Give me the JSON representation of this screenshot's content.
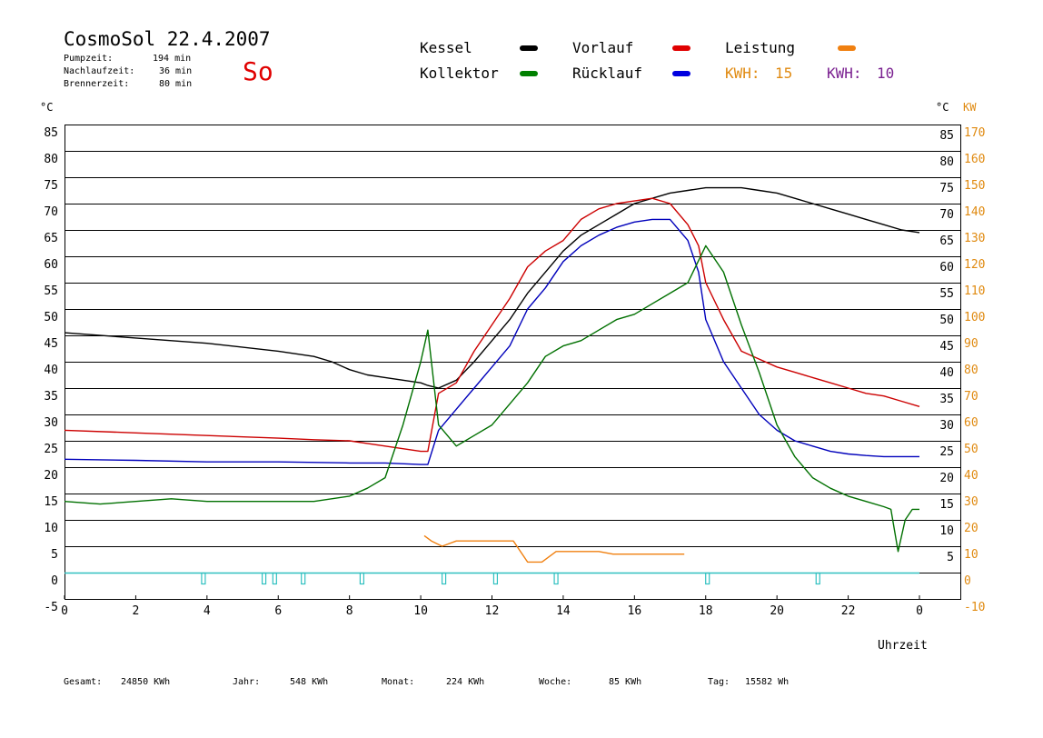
{
  "header": {
    "title": "CosmoSol 22.4.2007",
    "day": "So",
    "stats": [
      {
        "label": "Pumpzeit:",
        "value": "194 min"
      },
      {
        "label": "Nachlaufzeit:",
        "value": "36 min"
      },
      {
        "label": "Brennerzeit:",
        "value": "80 min"
      }
    ]
  },
  "legend": {
    "items": [
      {
        "label": "Kessel",
        "color": "#000000"
      },
      {
        "label": "Vorlauf",
        "color": "#e00000"
      },
      {
        "label": "Leistung",
        "color": "#f08010"
      },
      {
        "label": "Kollektor",
        "color": "#008000"
      },
      {
        "label": "Rücklauf",
        "color": "#0000e0"
      }
    ],
    "kwh": [
      {
        "label": "KWH:",
        "value": "15",
        "color": "#e08a10"
      },
      {
        "label": "KWH:",
        "value": "10",
        "color": "#7a2090"
      }
    ]
  },
  "axes": {
    "left_unit": "°C",
    "right_unit_c": "°C",
    "right_unit_kw": "KW",
    "x_label": "Uhrzeit"
  },
  "footer": [
    {
      "label": "Gesamt:",
      "value": "24850 KWh"
    },
    {
      "label": "Jahr:",
      "value": "548 KWh"
    },
    {
      "label": "Monat:",
      "value": "224 KWh"
    },
    {
      "label": "Woche:",
      "value": "85 KWh"
    },
    {
      "label": "Tag:",
      "value": "15582 Wh"
    }
  ],
  "colors": {
    "kessel": "#000000",
    "vorlauf": "#cc0000",
    "ruecklauf": "#0000bb",
    "kollektor": "#007000",
    "leistung": "#f08010",
    "leistung2": "#7a2090",
    "pump": "#30c0c0",
    "kw_axis": "#e08a10",
    "day": "#e00000",
    "grid": "#000000"
  },
  "chart_data": {
    "type": "line",
    "xlabel": "Uhrzeit",
    "ylabel": "°C",
    "y2label": "KW",
    "xlim": [
      0,
      24
    ],
    "ylim": [
      -5,
      85
    ],
    "y2lim": [
      -10,
      170
    ],
    "x_ticks": [
      "0",
      "2",
      "4",
      "6",
      "8",
      "10",
      "12",
      "14",
      "16",
      "18",
      "20",
      "22",
      "0"
    ],
    "x_tick_values": [
      0,
      2,
      4,
      6,
      8,
      10,
      12,
      14,
      16,
      18,
      20,
      22,
      24
    ],
    "y_ticks_left": [
      85,
      80,
      75,
      70,
      65,
      60,
      55,
      50,
      45,
      40,
      35,
      30,
      25,
      20,
      15,
      10,
      5,
      0,
      -5
    ],
    "y_ticks_right_c": [
      85,
      80,
      75,
      70,
      65,
      60,
      55,
      50,
      45,
      40,
      35,
      30,
      25,
      20,
      15,
      10,
      5
    ],
    "y_ticks_right_kw": [
      170,
      160,
      150,
      140,
      130,
      120,
      110,
      100,
      90,
      80,
      70,
      60,
      50,
      40,
      30,
      20,
      10,
      0,
      -10
    ],
    "grid": true,
    "series": [
      {
        "name": "Kessel",
        "x": [
          0,
          2,
          4,
          6,
          7,
          7.5,
          8,
          8.5,
          9,
          9.5,
          10,
          10.2,
          10.5,
          11,
          11.5,
          12,
          12.5,
          13,
          13.5,
          14,
          14.5,
          15,
          15.5,
          16,
          16.5,
          17,
          17.5,
          18,
          18.5,
          19,
          19.5,
          20,
          20.5,
          21,
          21.5,
          22,
          22.5,
          23,
          23.5,
          24
        ],
        "y": [
          45.5,
          44.5,
          43.5,
          42,
          41,
          40,
          38.5,
          37.5,
          37,
          36.5,
          36,
          35.5,
          35,
          36.5,
          40,
          44,
          48,
          53,
          57,
          61,
          64,
          66,
          68,
          70,
          71,
          72,
          72.5,
          73,
          73,
          73,
          72.5,
          72,
          71,
          70,
          69,
          68,
          67,
          66,
          65,
          64.5
        ]
      },
      {
        "name": "Vorlauf",
        "x": [
          0,
          2,
          4,
          6,
          7,
          8,
          8.5,
          9,
          9.5,
          10,
          10.2,
          10.5,
          11,
          11.5,
          12,
          12.5,
          13,
          13.5,
          14,
          14.5,
          15,
          15.5,
          16,
          16.5,
          17,
          17.5,
          17.8,
          18,
          18.5,
          19,
          19.5,
          20,
          20.5,
          21,
          21.5,
          22,
          22.5,
          23,
          23.5,
          24
        ],
        "y": [
          27,
          26.5,
          26,
          25.5,
          25.2,
          25,
          24.5,
          24,
          23.5,
          23,
          23,
          34,
          36,
          42,
          47,
          52,
          58,
          61,
          63,
          67,
          69,
          70,
          70.5,
          71,
          70,
          66,
          62,
          55,
          48,
          42,
          40.5,
          39,
          38,
          37,
          36,
          35,
          34,
          33.5,
          32.5,
          31.5
        ]
      },
      {
        "name": "Rücklauf",
        "x": [
          0,
          2,
          4,
          6,
          8,
          9,
          10,
          10.2,
          10.5,
          11,
          11.5,
          12,
          12.5,
          13,
          13.5,
          14,
          14.5,
          15,
          15.5,
          16,
          16.5,
          17,
          17.5,
          17.8,
          18,
          18.5,
          19,
          19.5,
          20,
          20.5,
          21,
          21.5,
          22,
          22.5,
          23,
          23.5,
          24
        ],
        "y": [
          21.5,
          21.3,
          21,
          21,
          20.8,
          20.8,
          20.5,
          20.5,
          27,
          31,
          35,
          39,
          43,
          50,
          54,
          59,
          62,
          64,
          65.5,
          66.5,
          67,
          67,
          63,
          57,
          48,
          40,
          35,
          30,
          27,
          25,
          24,
          23,
          22.5,
          22.2,
          22,
          22,
          22
        ]
      },
      {
        "name": "Kollektor",
        "x": [
          0,
          1,
          2,
          3,
          4,
          5,
          6,
          7,
          8,
          8.5,
          9,
          9.5,
          10,
          10.2,
          10.5,
          11,
          11.5,
          12,
          12.5,
          13,
          13.5,
          14,
          14.5,
          15,
          15.5,
          16,
          16.5,
          17,
          17.5,
          18,
          18.5,
          19,
          19.5,
          20,
          20.5,
          21,
          21.5,
          22,
          22.5,
          23,
          23.2,
          23.4,
          23.6,
          23.8,
          24
        ],
        "y": [
          13.5,
          13,
          13.5,
          14,
          13.5,
          13.5,
          13.5,
          13.5,
          14.5,
          16,
          18,
          28,
          40,
          46,
          28,
          24,
          26,
          28,
          32,
          36,
          41,
          43,
          44,
          46,
          48,
          49,
          51,
          53,
          55,
          62,
          57,
          47,
          38,
          28,
          22,
          18,
          16,
          14.5,
          13.5,
          12.5,
          12,
          4,
          10,
          12,
          12
        ]
      },
      {
        "name": "Leistung",
        "x": [
          10.1,
          10.3,
          10.6,
          11,
          11.4,
          11.8,
          12.2,
          12.6,
          13,
          13.4,
          13.8,
          14.2,
          14.6,
          15,
          15.4,
          15.8,
          16.2,
          16.6,
          17,
          17.4
        ],
        "y": [
          7,
          6,
          5,
          6,
          6,
          6,
          6,
          6,
          2,
          2,
          4,
          4,
          4,
          4,
          3.5,
          3.5,
          3.5,
          3.5,
          3.5,
          3.5
        ]
      }
    ],
    "pump_markers_x": [
      3.9,
      5.6,
      5.9,
      6.7,
      8.35,
      10.65,
      12.1,
      13.8,
      18.05,
      21.15
    ]
  }
}
